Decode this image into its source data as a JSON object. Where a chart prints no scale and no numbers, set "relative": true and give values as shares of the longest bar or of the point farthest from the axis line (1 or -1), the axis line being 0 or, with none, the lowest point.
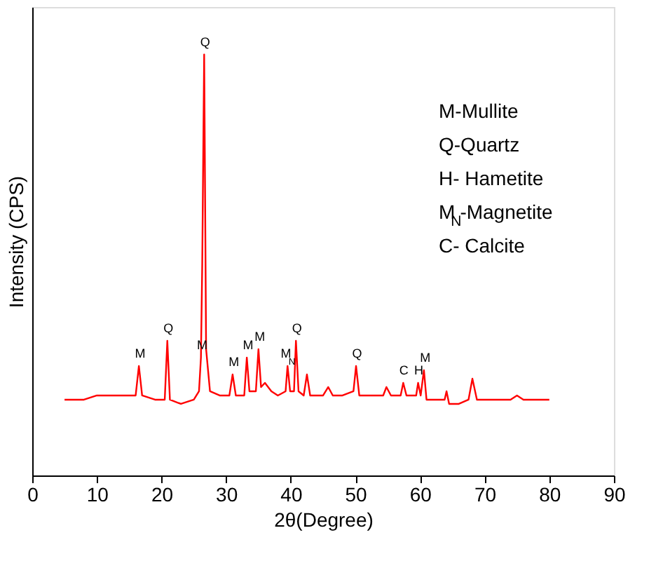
{
  "chart_data": {
    "type": "line",
    "relative": true,
    "xlabel": "2θ(Degree)",
    "ylabel": "Intensity (CPS)",
    "xlim": [
      0,
      90
    ],
    "xticks": [
      0,
      10,
      20,
      30,
      40,
      50,
      60,
      70,
      80,
      90
    ],
    "grid": false,
    "marker": "none",
    "line_style": "solid",
    "series": [
      {
        "color": "#ff0000",
        "x": [
          5,
          8,
          10,
          12,
          14,
          16,
          16.5,
          17,
          19,
          20.5,
          20.9,
          21.3,
          23,
          25,
          25.8,
          26.1,
          26.3,
          26.6,
          26.9,
          27.5,
          29,
          30.5,
          31,
          31.5,
          32.8,
          33.2,
          33.6,
          34.6,
          35,
          35.4,
          36,
          36.5,
          37,
          38,
          39.2,
          39.5,
          39.9,
          40.5,
          40.8,
          41.2,
          42,
          42.5,
          43,
          45,
          45.8,
          46.5,
          48,
          49.7,
          50.1,
          50.6,
          52,
          54.3,
          54.8,
          55.5,
          57,
          57.4,
          57.9,
          59.4,
          59.7,
          60.1,
          60.6,
          61,
          62,
          63.8,
          64.1,
          64.5,
          66,
          67.5,
          68.1,
          68.8,
          70,
          72,
          74,
          75,
          76,
          78,
          80
        ],
        "values": [
          0.18,
          0.18,
          0.19,
          0.19,
          0.19,
          0.19,
          0.26,
          0.19,
          0.18,
          0.18,
          0.32,
          0.18,
          0.17,
          0.18,
          0.2,
          0.28,
          0.5,
          1.0,
          0.3,
          0.2,
          0.19,
          0.19,
          0.24,
          0.19,
          0.19,
          0.28,
          0.2,
          0.2,
          0.3,
          0.21,
          0.22,
          0.21,
          0.2,
          0.19,
          0.2,
          0.26,
          0.2,
          0.2,
          0.32,
          0.2,
          0.19,
          0.24,
          0.19,
          0.19,
          0.21,
          0.19,
          0.19,
          0.2,
          0.26,
          0.19,
          0.19,
          0.19,
          0.21,
          0.19,
          0.19,
          0.22,
          0.19,
          0.19,
          0.22,
          0.19,
          0.25,
          0.18,
          0.18,
          0.18,
          0.2,
          0.17,
          0.17,
          0.18,
          0.23,
          0.18,
          0.18,
          0.18,
          0.18,
          0.19,
          0.18,
          0.18,
          0.18
        ]
      }
    ],
    "annotations": [
      {
        "text": "M",
        "x": 16.5,
        "y": 0.26
      },
      {
        "text": "Q",
        "x": 20.9,
        "y": 0.32
      },
      {
        "text": "M",
        "x": 26.1,
        "y": 0.28
      },
      {
        "text": "Q",
        "x": 26.6,
        "y": 1.0
      },
      {
        "text": "M",
        "x": 31,
        "y": 0.24
      },
      {
        "text": "M",
        "x": 33.2,
        "y": 0.28
      },
      {
        "text": "M",
        "x": 35,
        "y": 0.3
      },
      {
        "text": "M$_{N}$",
        "x": 39.5,
        "y": 0.26
      },
      {
        "text": "Q",
        "x": 40.8,
        "y": 0.32
      },
      {
        "text": "Q",
        "x": 50.1,
        "y": 0.26
      },
      {
        "text": "C",
        "x": 57.4,
        "y": 0.22
      },
      {
        "text": "H",
        "x": 59.7,
        "y": 0.22
      },
      {
        "text": "M",
        "x": 60.6,
        "y": 0.25
      },
      "M-Mullite",
      "Q-Quartz",
      "H- Hametite",
      "M$_{N}$-Magnetite",
      "C- Calcite"
    ]
  }
}
